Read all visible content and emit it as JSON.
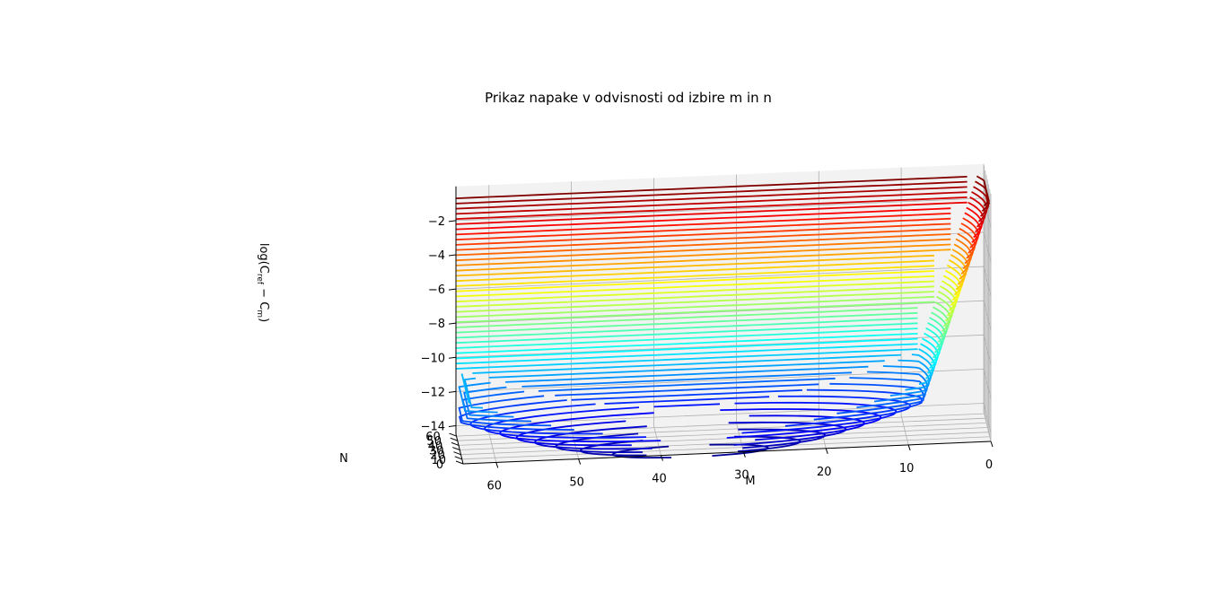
{
  "chart_data": {
    "type": "contour3d",
    "title": "Prikaz napake v odvisnosti od izbire m in n",
    "xlabel": "M",
    "ylabel": "N",
    "zlabel": "log(C_ref − C_m)",
    "zlabel_parts": {
      "base": "log(C",
      "sub1": "ref",
      "mid": " − C",
      "sub2": "m",
      "end": ")"
    },
    "x_ticks": [
      "60",
      "50",
      "40",
      "30",
      "20",
      "10",
      "0"
    ],
    "x_tick_values": [
      60,
      50,
      40,
      30,
      20,
      10,
      0
    ],
    "y_ticks": [
      "0",
      "10",
      "20",
      "30",
      "40",
      "50",
      "60"
    ],
    "y_tick_values": [
      0,
      10,
      20,
      30,
      40,
      50,
      60
    ],
    "z_ticks": [
      "−2",
      "−4",
      "−6",
      "−8",
      "−10",
      "−12",
      "−14"
    ],
    "z_tick_values": [
      -2,
      -4,
      -6,
      -8,
      -10,
      -12,
      -14
    ],
    "xlim": [
      0,
      64
    ],
    "ylim": [
      0,
      64
    ],
    "zlim": [
      -14.5,
      0
    ],
    "colormap": "jet",
    "contour_levels": 50,
    "level_range": [
      -15.5,
      -0.7
    ],
    "grid": true,
    "pane_color": "#f2f2f2",
    "grid_color": "#b0b0b0"
  }
}
